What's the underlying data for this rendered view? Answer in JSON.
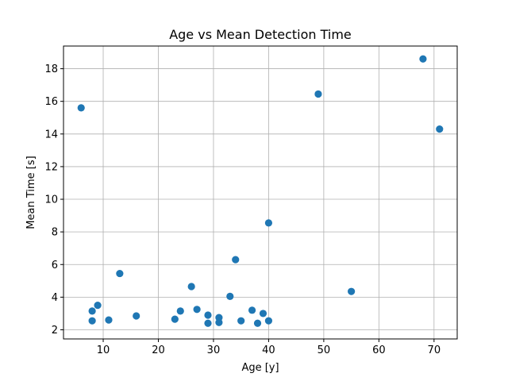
{
  "chart_data": {
    "type": "scatter",
    "title": "Age vs Mean Detection Time",
    "xlabel": "Age [y]",
    "ylabel": "Mean Time [s]",
    "xlim": [
      2.8,
      74.2
    ],
    "ylim": [
      1.44,
      19.39
    ],
    "grid": true,
    "marker_color": "#1f77b4",
    "x_ticks": [
      10,
      20,
      30,
      40,
      50,
      60,
      70
    ],
    "y_ticks": [
      2,
      4,
      6,
      8,
      10,
      12,
      14,
      16,
      18
    ],
    "points": [
      {
        "x": 6,
        "y": 15.6
      },
      {
        "x": 8,
        "y": 3.15
      },
      {
        "x": 8,
        "y": 2.55
      },
      {
        "x": 9,
        "y": 3.5
      },
      {
        "x": 11,
        "y": 2.6
      },
      {
        "x": 13,
        "y": 5.45
      },
      {
        "x": 16,
        "y": 2.85
      },
      {
        "x": 23,
        "y": 2.65
      },
      {
        "x": 24,
        "y": 3.15
      },
      {
        "x": 26,
        "y": 4.65
      },
      {
        "x": 27,
        "y": 3.25
      },
      {
        "x": 29,
        "y": 2.9
      },
      {
        "x": 29,
        "y": 2.4
      },
      {
        "x": 31,
        "y": 2.75
      },
      {
        "x": 31,
        "y": 2.45
      },
      {
        "x": 33,
        "y": 4.05
      },
      {
        "x": 34,
        "y": 6.3
      },
      {
        "x": 35,
        "y": 2.55
      },
      {
        "x": 37,
        "y": 3.2
      },
      {
        "x": 38,
        "y": 2.4
      },
      {
        "x": 39,
        "y": 3.0
      },
      {
        "x": 40,
        "y": 8.55
      },
      {
        "x": 40,
        "y": 2.55
      },
      {
        "x": 49,
        "y": 16.45
      },
      {
        "x": 55,
        "y": 4.35
      },
      {
        "x": 68,
        "y": 18.6
      },
      {
        "x": 71,
        "y": 14.3
      }
    ]
  }
}
